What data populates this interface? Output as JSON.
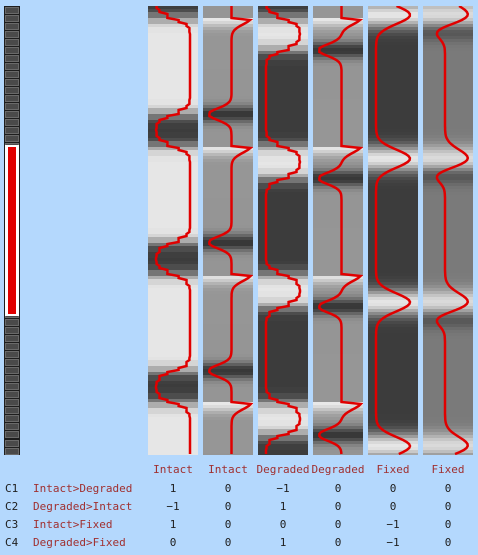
{
  "design_columns": [
    {
      "label": "Intact",
      "phases": [
        12,
        4
      ],
      "smooth": true,
      "pulse_positions": []
    },
    {
      "label": "Intact",
      "phases": [
        12,
        4
      ],
      "smooth": false,
      "pulse_positions": []
    },
    {
      "label": "Degraded",
      "phases": [
        4,
        12
      ],
      "smooth": true,
      "pulse_positions": []
    },
    {
      "label": "Degraded",
      "phases": [
        4,
        12
      ],
      "smooth": false,
      "pulse_positions": []
    },
    {
      "label": "Fixed",
      "phases": [],
      "smooth": true,
      "pulse_positions": [
        0.02,
        0.34,
        0.66,
        0.98
      ]
    },
    {
      "label": "Fixed",
      "phases": [],
      "smooth": false,
      "pulse_positions": [
        0.02,
        0.34,
        0.66,
        0.98
      ]
    }
  ],
  "contrasts": [
    {
      "id": "C1",
      "label": "Intact>Degraded",
      "weights": [
        "1",
        "0",
        "−1",
        "0",
        "0",
        "0"
      ]
    },
    {
      "id": "C2",
      "label": "Degraded>Intact",
      "weights": [
        "−1",
        "0",
        "1",
        "0",
        "0",
        "0"
      ]
    },
    {
      "id": "C3",
      "label": "Intact>Fixed",
      "weights": [
        "1",
        "0",
        "0",
        "0",
        "−1",
        "0"
      ]
    },
    {
      "id": "C4",
      "label": "Degraded>Fixed",
      "weights": [
        "0",
        "0",
        "1",
        "0",
        "−1",
        "0"
      ]
    }
  ],
  "scan_bar": {
    "total_blocks": 56,
    "selected_start": 0.31,
    "selected_end": 0.69
  },
  "colors": {
    "background": "#b4d8fd",
    "timecourse": "#e00000",
    "label_text": "#a03030"
  }
}
